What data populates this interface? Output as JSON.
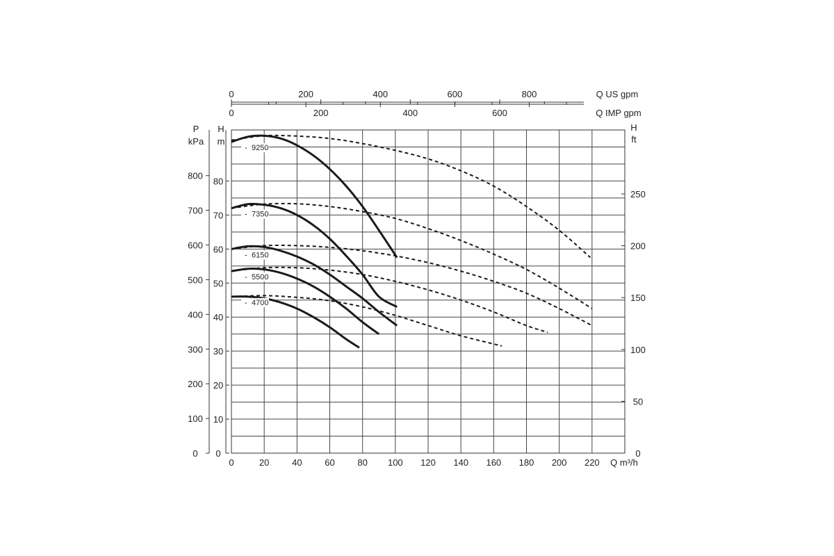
{
  "chart_data": {
    "type": "line",
    "axes": {
      "x_bottom": {
        "label": "Q m³/h",
        "range": [
          0,
          240
        ],
        "ticks": [
          0,
          20,
          40,
          60,
          80,
          100,
          120,
          140,
          160,
          180,
          200,
          220
        ]
      },
      "x_top_us": {
        "label": "Q US gpm",
        "ticks": [
          0,
          200,
          400,
          600,
          800
        ]
      },
      "x_top_imp": {
        "label": "Q IMP gpm",
        "ticks": [
          0,
          200,
          400,
          600
        ]
      },
      "y_left_m": {
        "label_top": "H",
        "label_unit": "m",
        "range": [
          0,
          95
        ],
        "ticks": [
          0,
          10,
          20,
          30,
          40,
          50,
          60,
          70,
          80
        ]
      },
      "y_left_kpa": {
        "label_top": "P",
        "label_unit": "kPa",
        "ticks": [
          0,
          100,
          200,
          300,
          400,
          500,
          600,
          700,
          800
        ]
      },
      "y_right_ft": {
        "label_top": "H",
        "label_unit": "ft",
        "ticks": [
          0,
          50,
          100,
          150,
          200,
          250
        ]
      },
      "grid": true
    },
    "series": [
      {
        "name": "9250",
        "style": "solid",
        "x": [
          0,
          10,
          20,
          30,
          40,
          50,
          60,
          70,
          80,
          90,
          101
        ],
        "y": [
          91.5,
          93.0,
          93.3,
          92.5,
          90.5,
          87.5,
          83.5,
          78.5,
          72.5,
          65.5,
          57.5
        ]
      },
      {
        "name": "9250",
        "style": "dashed",
        "x": [
          0,
          20,
          40,
          60,
          80,
          100,
          120,
          140,
          160,
          180,
          200,
          219
        ],
        "y": [
          92,
          93.3,
          93.2,
          92.5,
          91,
          89,
          86.5,
          83,
          78.5,
          72.5,
          65.5,
          57.5
        ]
      },
      {
        "name": "7350",
        "style": "solid",
        "x": [
          0,
          10,
          20,
          30,
          40,
          50,
          60,
          70,
          80,
          90,
          101
        ],
        "y": [
          72,
          73.2,
          73.0,
          72.0,
          70.0,
          67.0,
          63.0,
          58.0,
          52.5,
          46.0,
          43.0
        ]
      },
      {
        "name": "7350",
        "style": "dashed",
        "x": [
          0,
          20,
          40,
          60,
          80,
          100,
          120,
          140,
          160,
          180,
          200,
          220
        ],
        "y": [
          72,
          73.2,
          73.3,
          72.5,
          71,
          69,
          66,
          62.5,
          58.5,
          54,
          48.5,
          42.5
        ]
      },
      {
        "name": "6150",
        "style": "solid",
        "x": [
          0,
          10,
          20,
          30,
          40,
          50,
          60,
          70,
          80,
          90,
          101
        ],
        "y": [
          60,
          60.8,
          60.6,
          59.5,
          57.8,
          55.5,
          52.5,
          49.0,
          45.5,
          41.5,
          37.5
        ]
      },
      {
        "name": "6150",
        "style": "dashed",
        "x": [
          0,
          20,
          40,
          60,
          80,
          100,
          120,
          140,
          160,
          180,
          200,
          220
        ],
        "y": [
          60,
          61,
          61,
          60.5,
          59.5,
          58,
          56,
          53.5,
          50.5,
          47,
          42.5,
          37.5
        ]
      },
      {
        "name": "5500",
        "style": "solid",
        "x": [
          0,
          10,
          20,
          30,
          40,
          50,
          60,
          70,
          80,
          90
        ],
        "y": [
          53.5,
          54.2,
          54.0,
          53.0,
          51.3,
          49.0,
          46.0,
          42.5,
          38.5,
          35.0
        ]
      },
      {
        "name": "5500",
        "style": "dashed",
        "x": [
          0,
          20,
          40,
          60,
          80,
          100,
          120,
          140,
          160,
          180,
          193
        ],
        "y": [
          53.5,
          54.5,
          54.5,
          53.8,
          52.5,
          50.5,
          48,
          45,
          41.5,
          37.5,
          35.5
        ]
      },
      {
        "name": "4700",
        "style": "solid",
        "x": [
          0,
          10,
          20,
          30,
          40,
          50,
          60,
          70,
          78
        ],
        "y": [
          46,
          46.0,
          45.5,
          44.3,
          42.5,
          40.0,
          37.0,
          33.5,
          31.0
        ]
      },
      {
        "name": "4700",
        "style": "dashed",
        "x": [
          0,
          20,
          40,
          60,
          80,
          100,
          120,
          140,
          165
        ],
        "y": [
          46,
          46.3,
          45.8,
          44.8,
          43,
          40.5,
          37.5,
          34.5,
          31.5
        ]
      }
    ]
  }
}
